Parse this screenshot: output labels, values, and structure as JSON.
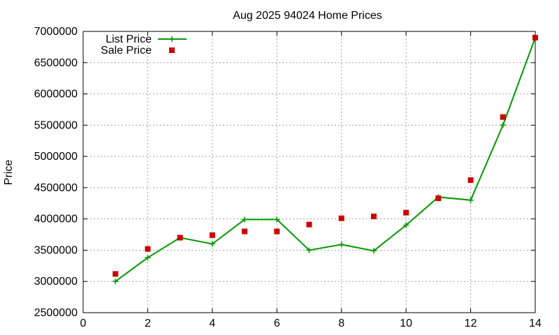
{
  "chart_data": {
    "type": "line",
    "title": "Aug 2025 94024 Home Prices",
    "xlabel": "",
    "ylabel": "Price",
    "xlim": [
      0,
      14
    ],
    "ylim": [
      2500000,
      7000000
    ],
    "x_ticks": [
      "0",
      "2",
      "4",
      "6",
      "8",
      "10",
      "12",
      "14"
    ],
    "y_ticks": [
      "2500000",
      "3000000",
      "3500000",
      "4000000",
      "4500000",
      "5000000",
      "5500000",
      "6000000",
      "6500000",
      "7000000"
    ],
    "grid": true,
    "legend_position": "top-left",
    "series": [
      {
        "name": "List Price",
        "style": "line-plus",
        "color": "#009900",
        "x": [
          1,
          2,
          3,
          4,
          5,
          6,
          7,
          8,
          9,
          10,
          11,
          12,
          13,
          14
        ],
        "values": [
          3000000,
          3380000,
          3700000,
          3600000,
          3990000,
          3990000,
          3500000,
          3590000,
          3490000,
          3900000,
          4350000,
          4300000,
          5500000,
          6900000
        ]
      },
      {
        "name": "Sale Price",
        "style": "square-points",
        "color": "#cc0000",
        "x": [
          1,
          2,
          3,
          4,
          5,
          6,
          7,
          8,
          9,
          10,
          11,
          12,
          13,
          14
        ],
        "values": [
          3120000,
          3520000,
          3700000,
          3740000,
          3800000,
          3800000,
          3910000,
          4010000,
          4040000,
          4100000,
          4330000,
          4620000,
          5630000,
          6900000
        ]
      }
    ]
  }
}
